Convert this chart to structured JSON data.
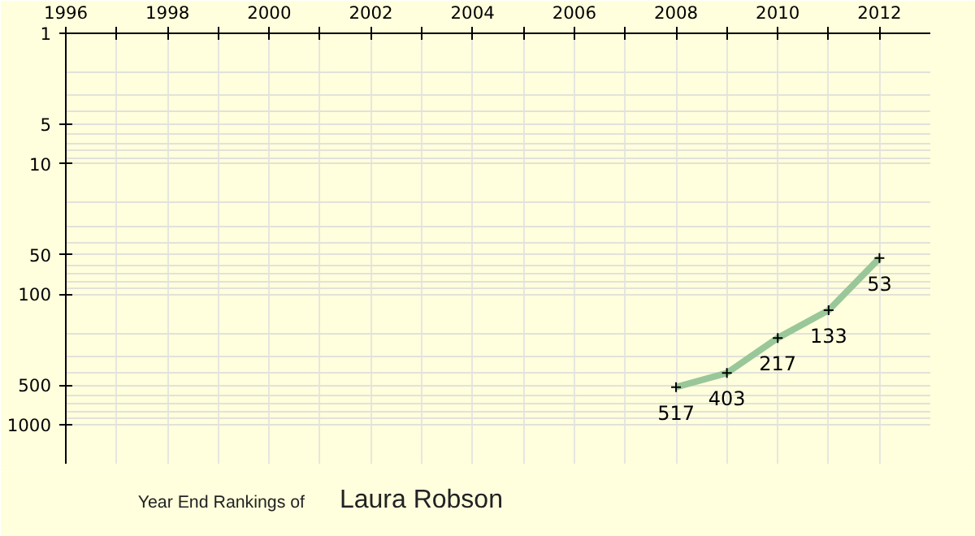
{
  "chart_data": {
    "type": "line",
    "title": "Year End Rankings of",
    "subtitle": "Laura Robson",
    "x": [
      2008,
      2009,
      2010,
      2011,
      2012
    ],
    "series": [
      {
        "color": "#99c799",
        "values": [
          517,
          403,
          217,
          133,
          53
        ]
      }
    ],
    "xlim": [
      1996,
      2013
    ],
    "xticks": [
      1996,
      {
        "value": 1997,
        "label": null
      },
      1998,
      {
        "value": 1999,
        "label": null
      },
      2000,
      {
        "value": 2001,
        "label": null
      },
      2002,
      {
        "value": 2003,
        "label": null
      },
      2004,
      {
        "value": 2005,
        "label": null
      },
      2006,
      {
        "value": 2007,
        "label": null
      },
      2008,
      {
        "value": 2009,
        "label": null
      },
      2010,
      {
        "value": 2011,
        "label": null
      },
      2012
    ],
    "ylim": [
      2000,
      1
    ],
    "yticks": [
      1,
      5,
      10,
      50,
      100,
      500,
      1000
    ],
    "log": "y",
    "grid": true,
    "marker": "cross",
    "line_style": "solid",
    "data_labels": true
  }
}
